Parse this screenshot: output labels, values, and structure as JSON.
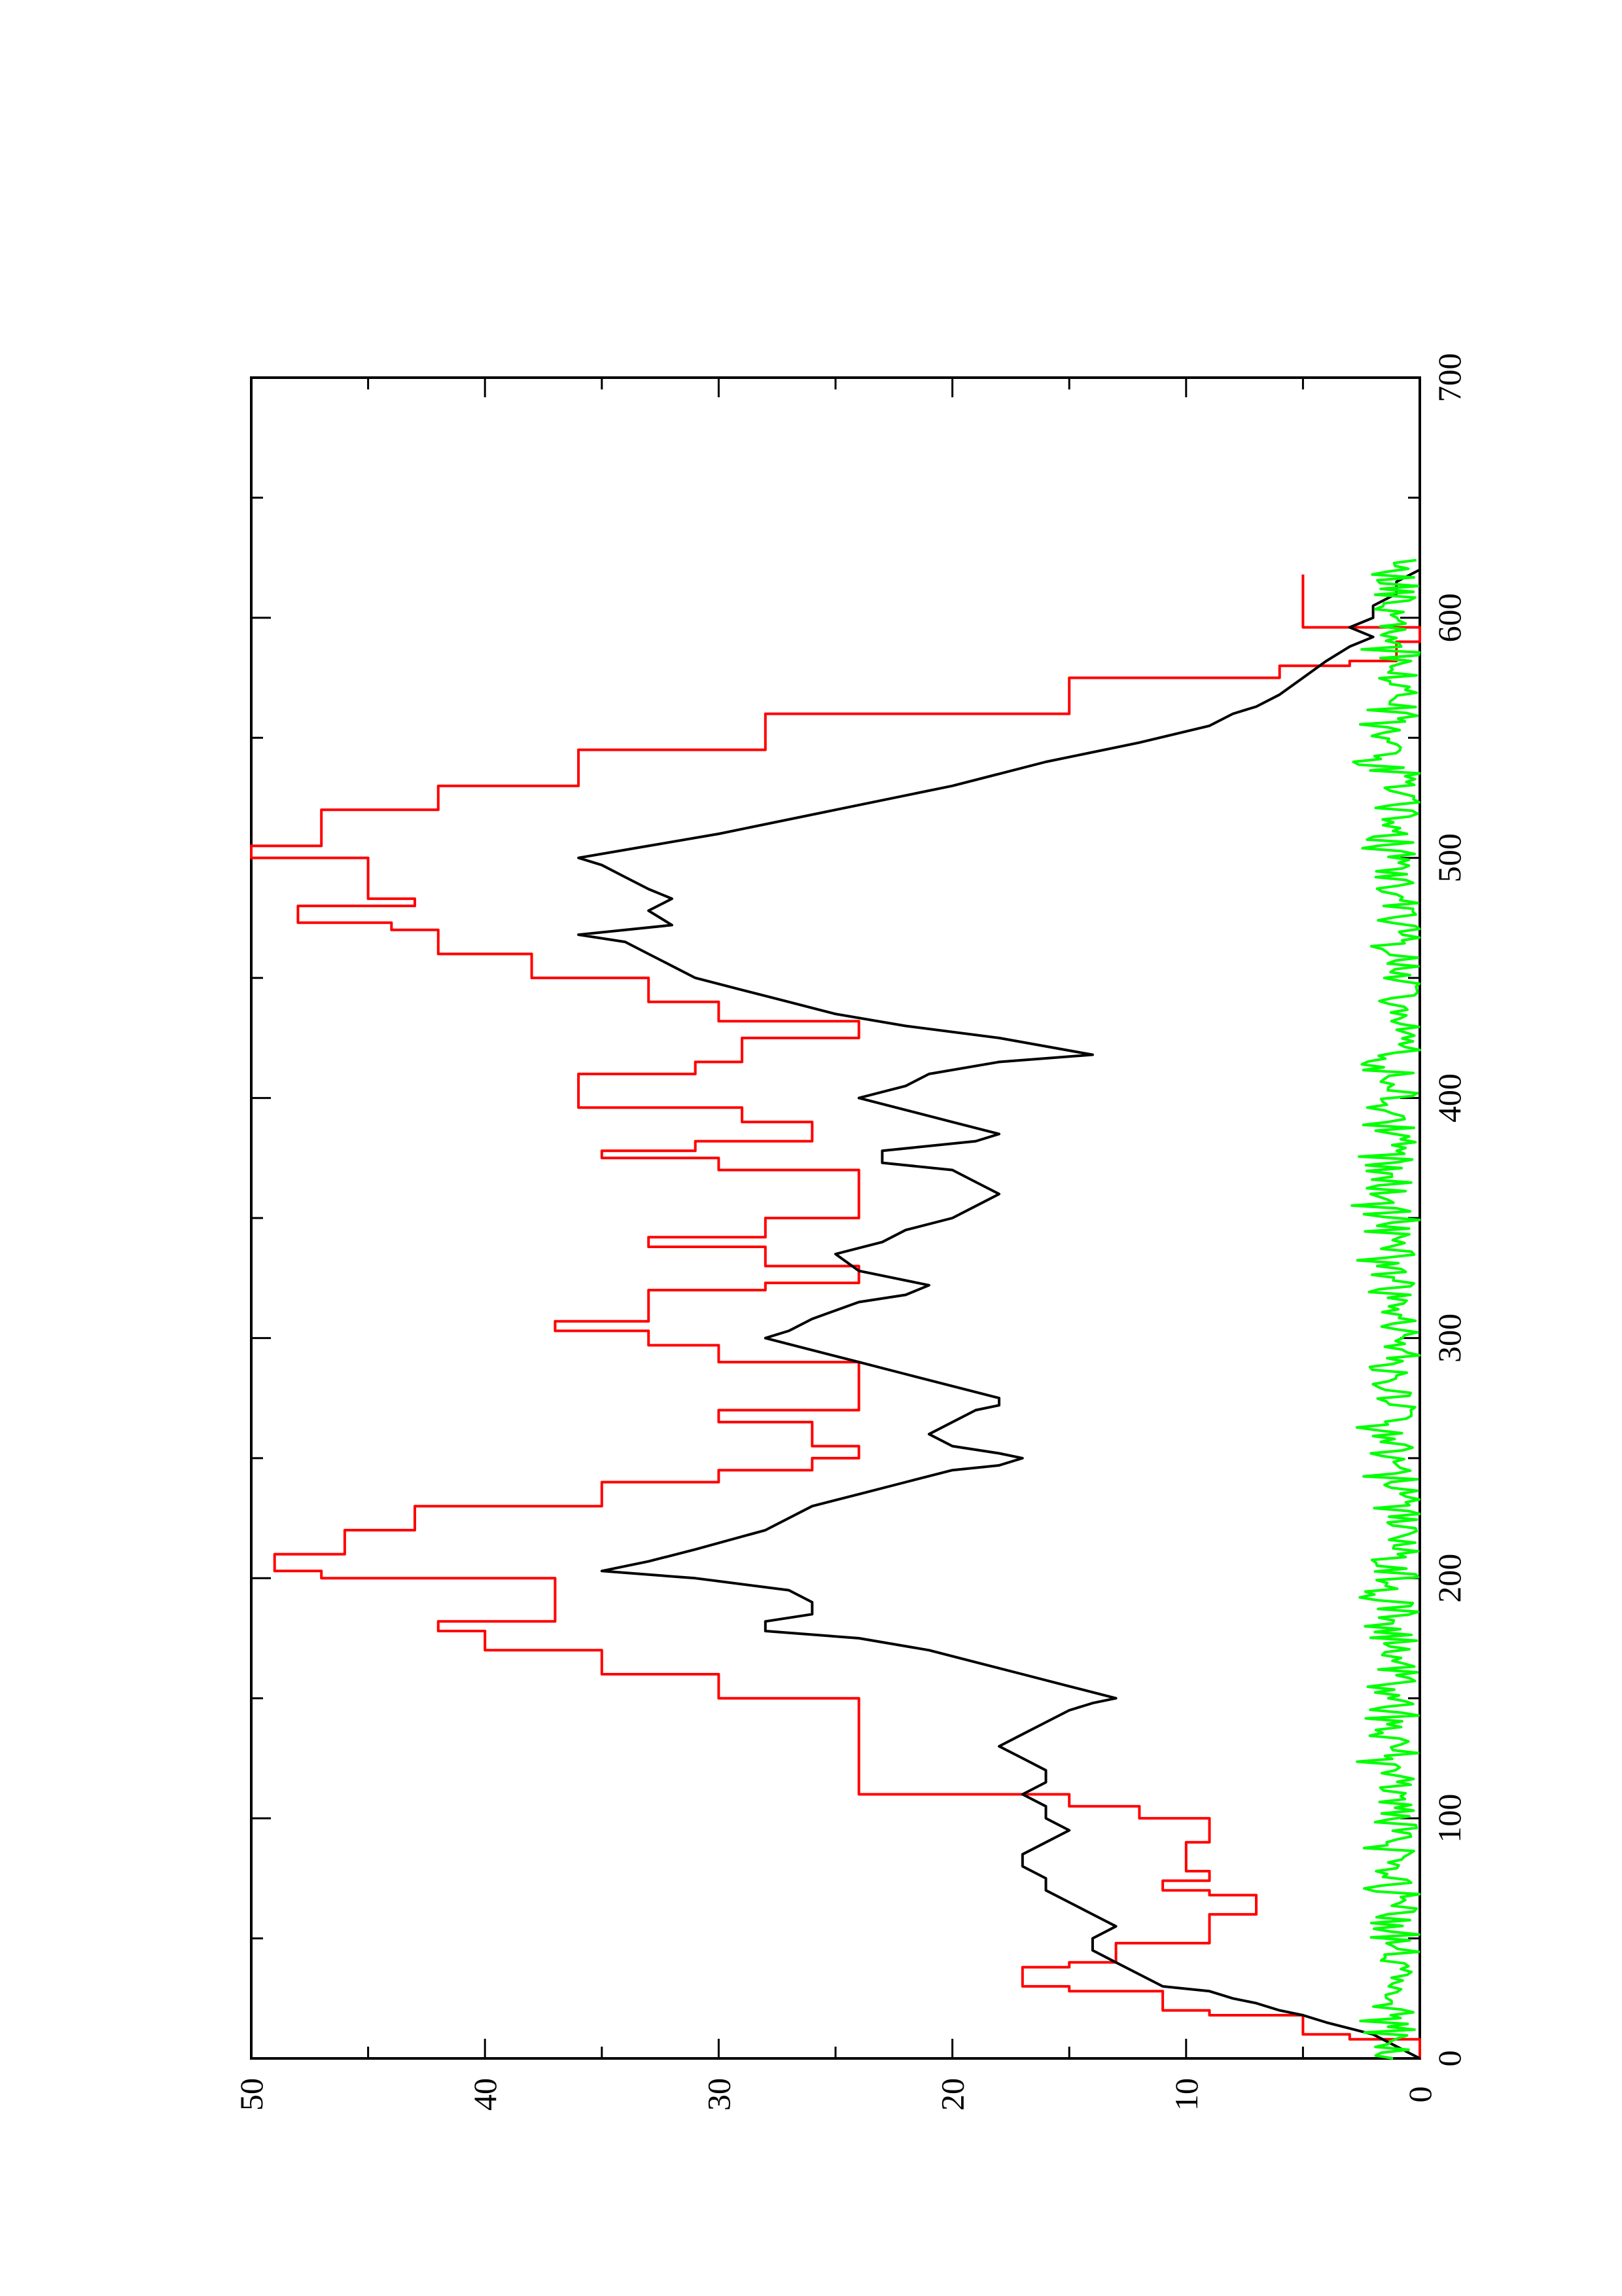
{
  "chart_data": {
    "type": "line",
    "orientation": "rotated-90-counterclockwise",
    "title": "",
    "xlabel": "",
    "ylabel": "",
    "xlim": [
      0,
      700
    ],
    "ylim": [
      0,
      50
    ],
    "x_ticks": [
      "0",
      "100",
      "200",
      "300",
      "400",
      "500",
      "600",
      "700"
    ],
    "y_ticks": [
      "0",
      "10",
      "20",
      "30",
      "40",
      "50"
    ],
    "grid": false,
    "legend": "none",
    "series": [
      {
        "color": "#ff0000",
        "step": true,
        "x": [
          0,
          8,
          10,
          18,
          20,
          28,
          30,
          38,
          40,
          48,
          60,
          68,
          70,
          74,
          78,
          90,
          100,
          105,
          110,
          148,
          150,
          160,
          170,
          178,
          182,
          187,
          200,
          203,
          210,
          220,
          230,
          240,
          245,
          250,
          255,
          265,
          270,
          280,
          290,
          297,
          303,
          307,
          320,
          323,
          330,
          338,
          342,
          350,
          360,
          370,
          375,
          378,
          382,
          390,
          396,
          402,
          410,
          415,
          425,
          432,
          440,
          450,
          460,
          470,
          473,
          480,
          483,
          490,
          500,
          505,
          520,
          530,
          545,
          560,
          575,
          580,
          582,
          590,
          596,
          600,
          615,
          618
        ],
        "y": [
          0,
          3,
          5,
          9,
          11,
          15,
          17,
          15,
          13,
          9,
          7,
          9,
          11,
          9,
          10,
          9,
          12,
          15,
          24,
          24,
          30,
          35,
          40,
          42,
          37,
          37,
          47,
          49,
          46,
          43,
          35,
          30,
          26,
          24,
          26,
          30,
          24,
          24,
          30,
          33,
          37,
          33,
          28,
          24,
          28,
          33,
          28,
          24,
          24,
          30,
          35,
          31,
          26,
          29,
          36,
          36,
          31,
          29,
          24,
          30,
          33,
          38,
          42,
          44,
          48,
          43,
          45,
          45,
          50,
          47,
          42,
          36,
          28,
          15,
          6,
          3,
          1,
          0,
          5,
          5,
          5,
          5
        ]
      },
      {
        "color": "#000000",
        "step": false,
        "x": [
          0,
          5,
          10,
          15,
          18,
          20,
          23,
          25,
          28,
          30,
          35,
          40,
          45,
          50,
          55,
          60,
          65,
          70,
          75,
          80,
          85,
          90,
          95,
          100,
          105,
          110,
          115,
          120,
          125,
          130,
          135,
          140,
          145,
          148,
          150,
          155,
          160,
          165,
          170,
          175,
          178,
          182,
          185,
          190,
          195,
          200,
          203,
          207,
          212,
          220,
          230,
          235,
          240,
          245,
          247,
          250,
          252,
          255,
          260,
          265,
          270,
          272,
          275,
          280,
          285,
          290,
          295,
          300,
          303,
          308,
          315,
          318,
          322,
          328,
          335,
          340,
          345,
          350,
          355,
          360,
          365,
          370,
          373,
          378,
          382,
          385,
          390,
          395,
          400,
          405,
          410,
          415,
          418,
          425,
          430,
          435,
          440,
          445,
          450,
          455,
          460,
          465,
          468,
          472,
          478,
          483,
          487,
          492,
          497,
          500,
          505,
          510,
          520,
          530,
          540,
          548,
          555,
          560,
          563,
          568,
          575,
          582,
          588,
          592,
          596,
          600,
          605,
          610,
          615,
          620
        ],
        "y": [
          0,
          1,
          2,
          4,
          5,
          6,
          7,
          8,
          9,
          11,
          12,
          13,
          14,
          14,
          13,
          14,
          15,
          16,
          16,
          17,
          17,
          16,
          15,
          16,
          16,
          17,
          16,
          16,
          17,
          18,
          17,
          16,
          15,
          14,
          13,
          15,
          17,
          19,
          21,
          24,
          28,
          28,
          26,
          26,
          27,
          31,
          35,
          33,
          31,
          28,
          26,
          24,
          22,
          20,
          18,
          17,
          18,
          20,
          21,
          20,
          19,
          18,
          18,
          20,
          22,
          24,
          26,
          28,
          27,
          26,
          24,
          22,
          21,
          24,
          25,
          23,
          22,
          20,
          19,
          18,
          19,
          20,
          23,
          23,
          19,
          18,
          20,
          22,
          24,
          22,
          21,
          18,
          14,
          18,
          22,
          25,
          27,
          29,
          31,
          32,
          33,
          34,
          36,
          32,
          33,
          32,
          33,
          34,
          35,
          36,
          33,
          30,
          25,
          20,
          16,
          12,
          9,
          8,
          7,
          6,
          5,
          4,
          3,
          2,
          3,
          2,
          2,
          1,
          1,
          0
        ]
      },
      {
        "color": "#00ff00",
        "step": false,
        "noise": true,
        "x_range": [
          0,
          625
        ],
        "y_range": [
          0,
          3
        ]
      }
    ]
  },
  "style": {
    "axis_color": "#000000",
    "background": "#ffffff"
  }
}
